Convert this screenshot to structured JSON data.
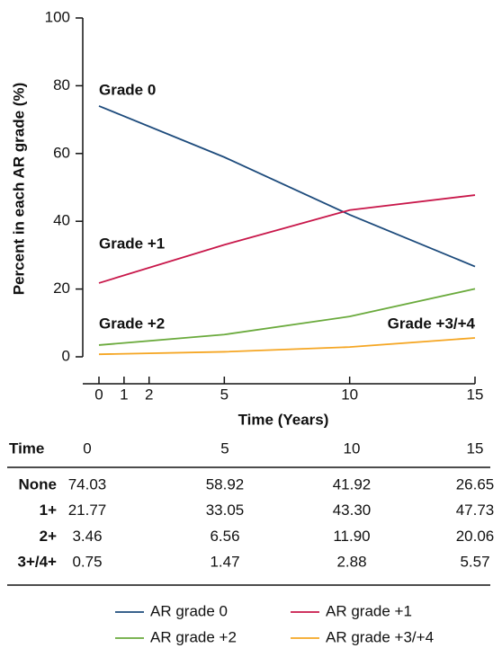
{
  "chart_data": {
    "type": "line",
    "ylabel": "Percent in each AR grade (%)",
    "xlabel": "Time (Years)",
    "x": [
      0,
      5,
      10,
      15
    ],
    "xlim": [
      0,
      15
    ],
    "xticks": [
      0,
      1,
      2,
      5,
      10,
      15
    ],
    "ylim": [
      0,
      100
    ],
    "yticks": [
      0,
      20,
      40,
      60,
      80,
      100
    ],
    "series": [
      {
        "name": "AR grade 0",
        "color": "#1d4b7c",
        "values": [
          74.03,
          58.92,
          41.92,
          26.65
        ]
      },
      {
        "name": "AR grade +1",
        "color": "#c8174a",
        "values": [
          21.77,
          33.05,
          43.3,
          47.73
        ]
      },
      {
        "name": "AR grade +2",
        "color": "#6aaa3c",
        "values": [
          3.46,
          6.56,
          11.9,
          20.06
        ]
      },
      {
        "name": "AR grade +3/+4",
        "color": "#f5a623",
        "values": [
          0.75,
          1.47,
          2.88,
          5.57
        ]
      }
    ],
    "annotations": [
      "Grade 0",
      "Grade +1",
      "Grade +2",
      "Grade +3/+4"
    ]
  },
  "table": {
    "header": [
      "Time",
      "0",
      "5",
      "10",
      "15"
    ],
    "rows": [
      [
        "None",
        "74.03",
        "58.92",
        "41.92",
        "26.65"
      ],
      [
        "1+",
        "21.77",
        "33.05",
        "43.30",
        "47.73"
      ],
      [
        "2+",
        "3.46",
        "6.56",
        "11.90",
        "20.06"
      ],
      [
        "3+/4+",
        "0.75",
        "1.47",
        "2.88",
        "5.57"
      ]
    ]
  }
}
